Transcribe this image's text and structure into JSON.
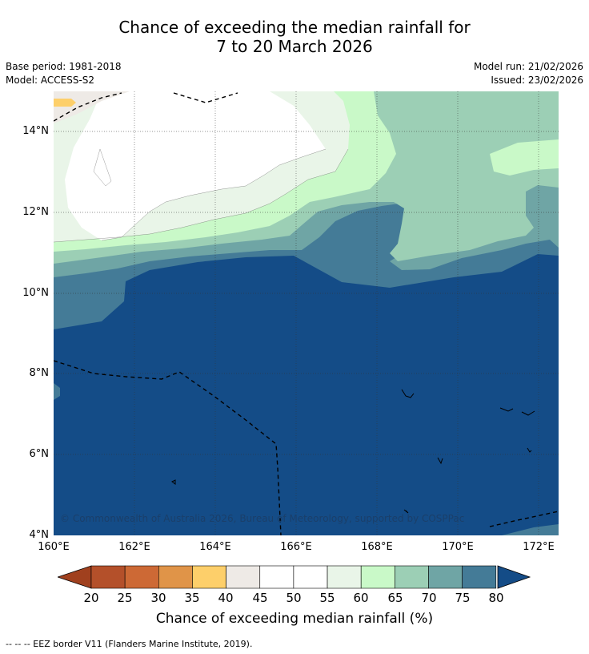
{
  "title_line1": "Chance of exceeding the median rainfall for",
  "title_line2": "7 to 20 March 2026",
  "meta": {
    "base_period": "Base period: 1981-2018",
    "model": "Model: ACCESS-S2",
    "model_run": "Model run: 21/02/2026",
    "issued": "Issued: 23/02/2026"
  },
  "axes": {
    "lat_labels": [
      "14°N",
      "12°N",
      "10°N",
      "8°N",
      "6°N",
      "4°N"
    ],
    "lon_labels": [
      "160°E",
      "162°E",
      "164°E",
      "166°E",
      "168°E",
      "170°E",
      "172°E"
    ]
  },
  "copyright": "© Commonwealth of Australia 2026, Bureau of Meteorology, supported by COSPPac",
  "colorbar": {
    "labels": [
      "20",
      "25",
      "30",
      "35",
      "40",
      "45",
      "50",
      "55",
      "60",
      "65",
      "70",
      "75",
      "80"
    ],
    "colors": [
      "#a0401e",
      "#b4502a",
      "#cd6935",
      "#e09448",
      "#fdcf6a",
      "#eeeae6",
      "#ffffff",
      "#ffffff",
      "#e9f5e8",
      "#c9f9c8",
      "#9ccfb5",
      "#6fa5a5",
      "#447b97",
      "#144c87"
    ],
    "title": "Chance of exceeding median rainfall (%)"
  },
  "footnote": "--  --  -- EEZ border V11 (Flanders Marine Institute, 2019)."
}
